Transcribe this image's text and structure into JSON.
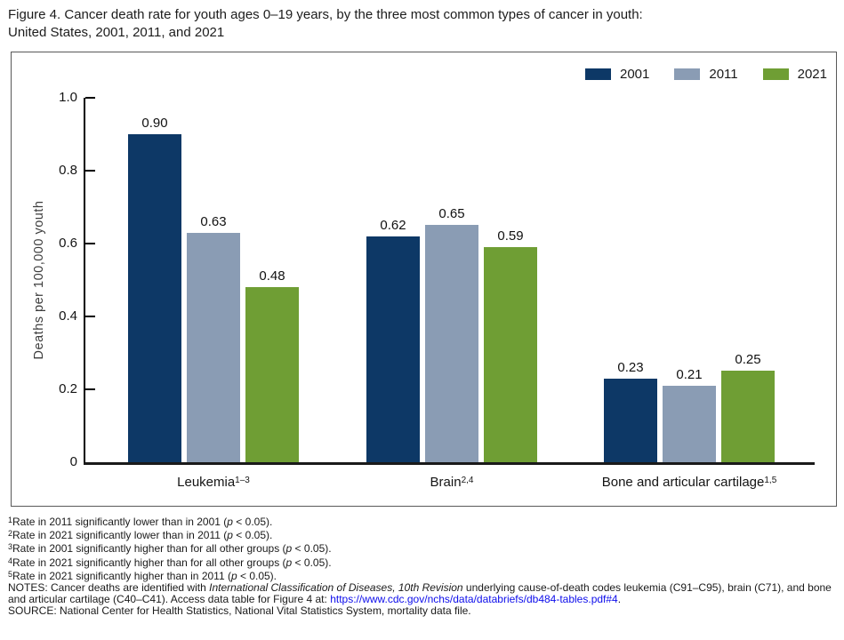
{
  "figure_title": {
    "line1": "Figure 4. Cancer death rate for youth ages 0–19 years, by the three most common types of cancer in youth:",
    "line2": "United States, 2001, 2011, and 2021"
  },
  "chart_data": {
    "type": "bar",
    "title": "Figure 4. Cancer death rate for youth ages 0–19 years, by the three most common types of cancer in youth: United States, 2001, 2011, and 2021",
    "categories": [
      "Leukemia",
      "Brain",
      "Bone and articular cartilage"
    ],
    "category_sups": [
      "1–3",
      "2,4",
      "1,5"
    ],
    "series": [
      {
        "name": "2001",
        "color": "#0d3866",
        "values": [
          0.9,
          0.62,
          0.23
        ]
      },
      {
        "name": "2011",
        "color": "#8a9cb4",
        "values": [
          0.63,
          0.65,
          0.21
        ]
      },
      {
        "name": "2021",
        "color": "#6f9e34",
        "values": [
          0.48,
          0.59,
          0.25
        ]
      }
    ],
    "xlabel": "",
    "ylabel": "Deaths per 100,000 youth",
    "ylim": [
      0,
      1.0
    ],
    "yticks": [
      "0",
      "0.2",
      "0.4",
      "0.6",
      "0.8",
      "1.0"
    ],
    "grid": false,
    "legend_position": "top-right",
    "value_label_decimals": 2
  },
  "footnotes": [
    {
      "sup": "1",
      "runs": [
        {
          "t": "Rate in 2011 significantly lower than in 2001 ("
        },
        {
          "t": "p",
          "i": true
        },
        {
          "t": " < 0.05)."
        }
      ]
    },
    {
      "sup": "2",
      "runs": [
        {
          "t": "Rate in 2021 significantly lower than in 2011 ("
        },
        {
          "t": "p",
          "i": true
        },
        {
          "t": " < 0.05)."
        }
      ]
    },
    {
      "sup": "3",
      "runs": [
        {
          "t": "Rate in 2001 significantly higher than for all other groups ("
        },
        {
          "t": "p",
          "i": true
        },
        {
          "t": " < 0.05)."
        }
      ]
    },
    {
      "sup": "4",
      "runs": [
        {
          "t": "Rate in 2021 significantly higher than for all other groups ("
        },
        {
          "t": "p",
          "i": true
        },
        {
          "t": " < 0.05)."
        }
      ]
    },
    {
      "sup": "5",
      "runs": [
        {
          "t": "Rate in 2021 significantly higher than in 2011 ("
        },
        {
          "t": "p",
          "i": true
        },
        {
          "t": " < 0.05)."
        }
      ]
    }
  ],
  "notes": {
    "runs": [
      {
        "t": "NOTES: Cancer deaths are identified with "
      },
      {
        "t": "International Classification of Diseases, 10th Revision",
        "i": true
      },
      {
        "t": " underlying cause-of-death codes leukemia (C91–C95), brain (C71), and bone and articular cartilage (C40–C41). Access data table for Figure 4 at: "
      },
      {
        "t": "https://www.cdc.gov/nchs/data/databriefs/db484-tables.pdf#4",
        "link": true
      },
      {
        "t": "."
      }
    ]
  },
  "source": {
    "runs": [
      {
        "t": "SOURCE: National Center for Health Statistics, National Vital Statistics System, mortality data file."
      }
    ]
  },
  "colors": {
    "series_2001": "#0d3866",
    "series_2011": "#8a9cb4",
    "series_2021": "#6f9e34",
    "axis": "#000000",
    "link": "#0d0deb",
    "chart_border": "#595959"
  }
}
